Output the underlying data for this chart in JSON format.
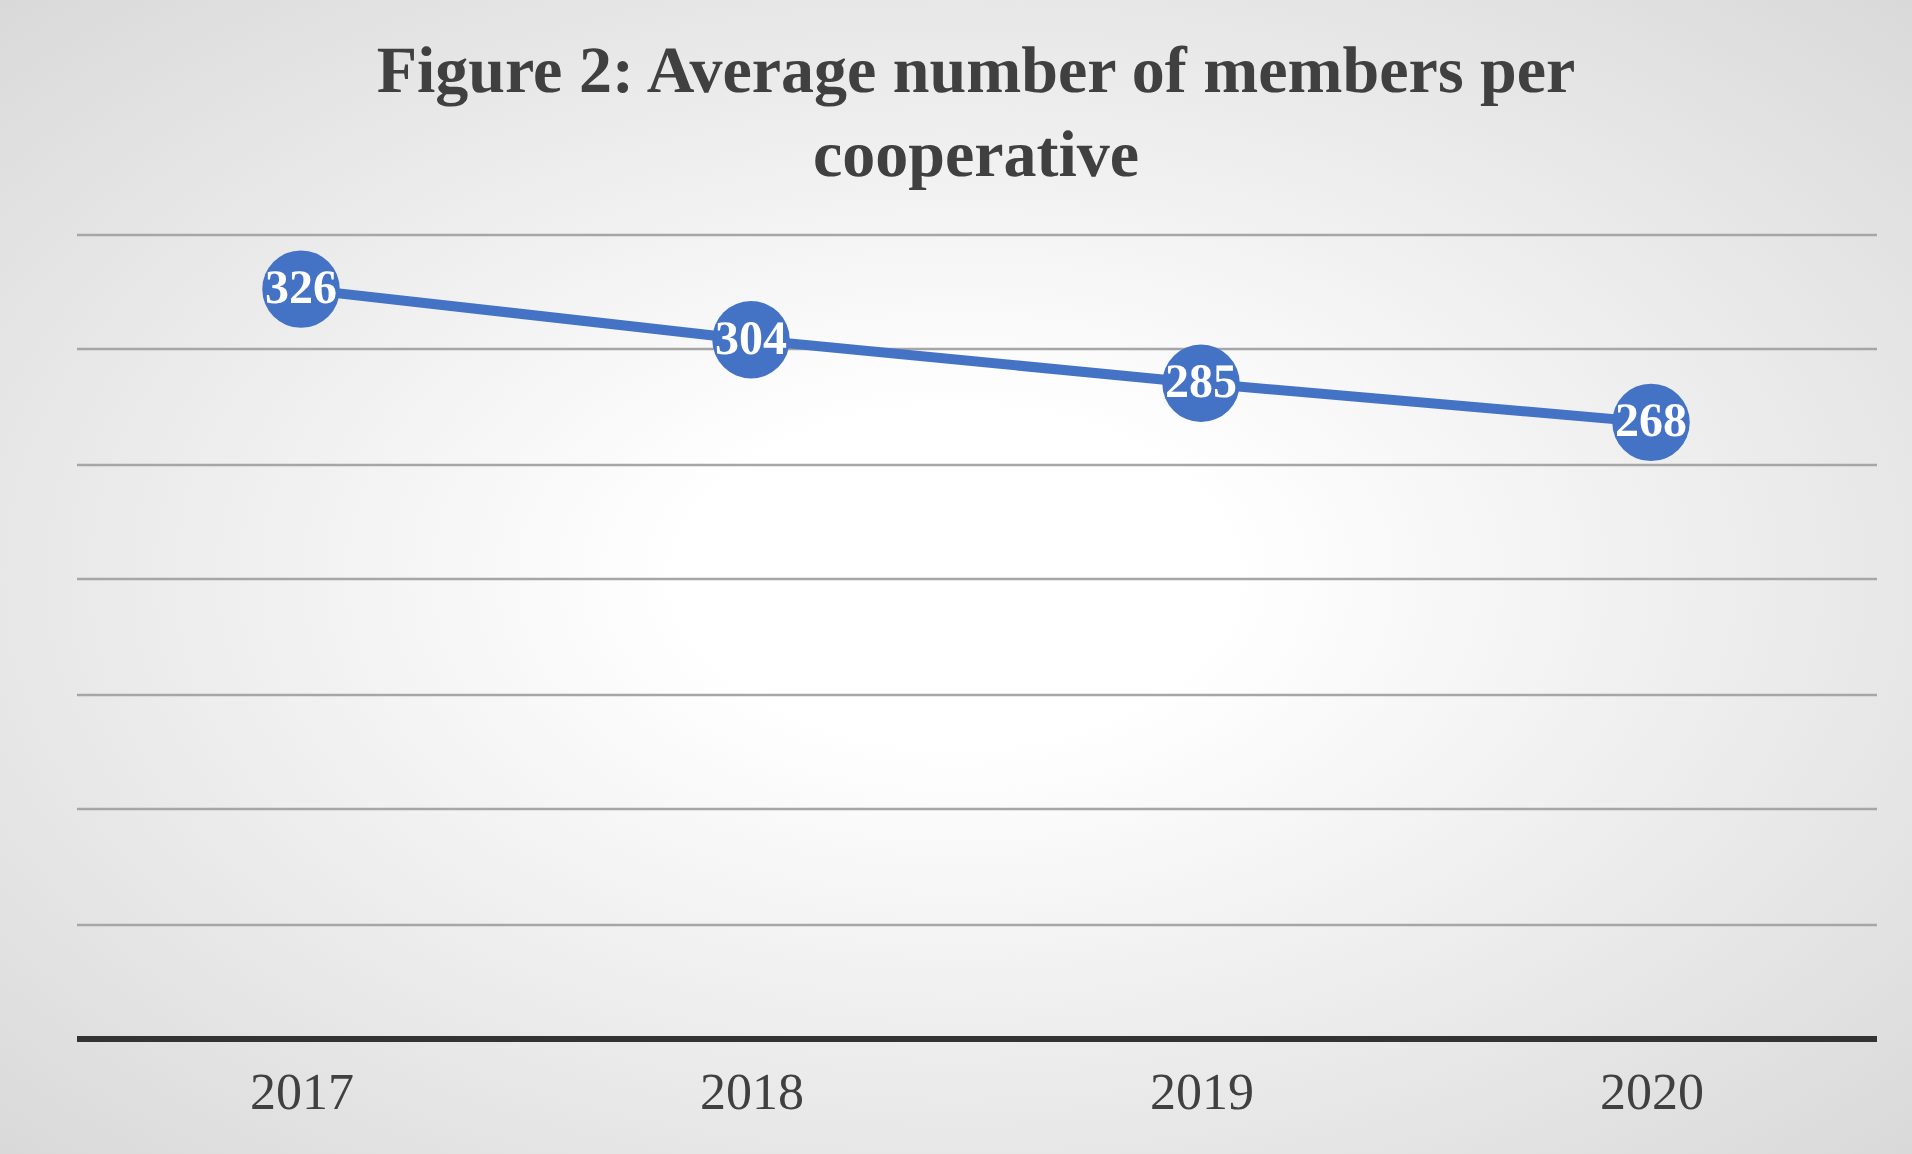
{
  "chart_data": {
    "type": "line",
    "title": "Figure 2: Average number of members per cooperative",
    "categories": [
      "2017",
      "2018",
      "2019",
      "2020"
    ],
    "series": [
      {
        "color": "#4472c4",
        "values": [
          326,
          304,
          285,
          268
        ]
      }
    ],
    "ylim": [
      0,
      350
    ],
    "yticks": [
      {
        "value": 0,
        "label": null
      },
      {
        "value": 50,
        "label": null
      },
      {
        "value": 100,
        "label": null
      },
      {
        "value": 150,
        "label": null
      },
      {
        "value": 200,
        "label": null
      },
      {
        "value": 250,
        "label": null
      },
      {
        "value": 300,
        "label": null
      },
      {
        "value": 350,
        "label": null
      }
    ],
    "grid": "y",
    "tick_labels": "x",
    "marker": "circle",
    "data_labels": true
  }
}
